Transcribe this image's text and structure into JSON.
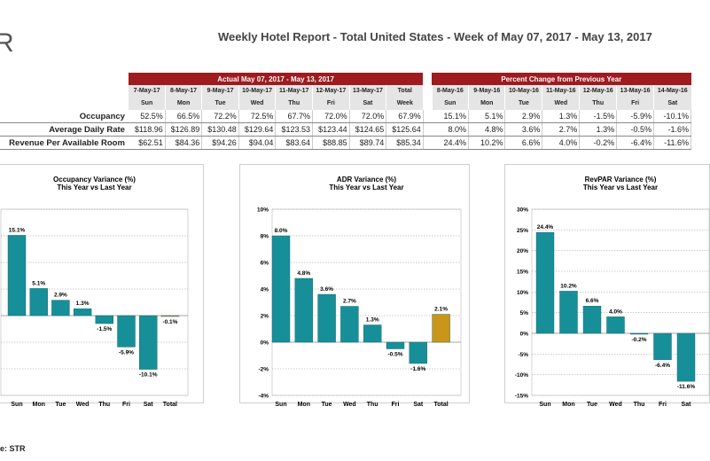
{
  "header": {
    "logo": "R",
    "title": "Weekly Hotel Report - Total United States - Week of May 07, 2017 - May 13, 2017"
  },
  "table": {
    "actual_label": "Actual May 07, 2017 - May 13, 2017",
    "change_label": "Percent Change from Previous Year",
    "actual_dates": [
      "7-May-17",
      "8-May-17",
      "9-May-17",
      "10-May-17",
      "11-May-17",
      "12-May-17",
      "13-May-17",
      "Total"
    ],
    "actual_days": [
      "Sun",
      "Mon",
      "Tue",
      "Wed",
      "Thu",
      "Fri",
      "Sat",
      "Week"
    ],
    "change_dates": [
      "8-May-16",
      "9-May-16",
      "10-May-16",
      "11-May-16",
      "12-May-16",
      "13-May-16",
      "14-May-16"
    ],
    "change_days": [
      "Sun",
      "Mon",
      "Tue",
      "Wed",
      "Thu",
      "Fri",
      "Sat"
    ],
    "rows": [
      {
        "label": "Occupancy",
        "actual": [
          "52.5%",
          "66.5%",
          "72.2%",
          "72.5%",
          "67.7%",
          "72.0%",
          "72.0%",
          "67.9%"
        ],
        "change": [
          "15.1%",
          "5.1%",
          "2.9%",
          "1.3%",
          "-1.5%",
          "-5.9%",
          "-10.1%"
        ]
      },
      {
        "label": "Average Daily Rate",
        "actual": [
          "$118.96",
          "$126.89",
          "$130.48",
          "$129.64",
          "$123.53",
          "$123.44",
          "$124.65",
          "$125.64"
        ],
        "change": [
          "8.0%",
          "4.8%",
          "3.6%",
          "2.7%",
          "1.3%",
          "-0.5%",
          "-1.6%"
        ]
      },
      {
        "label": "Revenue Per Available Room",
        "actual": [
          "$62.51",
          "$84.36",
          "$94.26",
          "$94.04",
          "$83.64",
          "$88.85",
          "$89.74",
          "$85.34"
        ],
        "change": [
          "24.4%",
          "10.2%",
          "6.6%",
          "4.0%",
          "-0.2%",
          "-6.4%",
          "-11.6%"
        ]
      }
    ]
  },
  "footer": {
    "source": "e: STR"
  },
  "colors": {
    "bar": "#178f99",
    "total_bar": "#c9961a",
    "header_red": "#9e1b20"
  },
  "chart_data": [
    {
      "type": "bar",
      "title": "Occupancy Variance (%)",
      "subtitle": "This Year vs Last Year",
      "categories": [
        "Sun",
        "Mon",
        "Tue",
        "Wed",
        "Thu",
        "Fri",
        "Sat",
        "Total"
      ],
      "values": [
        15.1,
        5.1,
        2.9,
        1.3,
        -1.5,
        -5.9,
        -10.1,
        -0.1
      ],
      "value_labels": [
        "15.1%",
        "5.1%",
        "2.9%",
        "1.3%",
        "-1.5%",
        "-5.9%",
        "-10.1%",
        "-0.1%"
      ],
      "ylim": [
        -15,
        20
      ],
      "ytick_labels": [],
      "ytick_values": [],
      "grid": true
    },
    {
      "type": "bar",
      "title": "ADR Variance (%)",
      "subtitle": "This Year vs Last Year",
      "categories": [
        "Sun",
        "Mon",
        "Tue",
        "Wed",
        "Thu",
        "Fri",
        "Sat",
        "Total"
      ],
      "values": [
        8.0,
        4.8,
        3.6,
        2.7,
        1.3,
        -0.5,
        -1.6,
        2.1
      ],
      "value_labels": [
        "8.0%",
        "4.8%",
        "3.6%",
        "2.7%",
        "1.3%",
        "-0.5%",
        "-1.6%",
        "2.1%"
      ],
      "ylim": [
        -4,
        10
      ],
      "ytick_values": [
        -4,
        -2,
        0,
        2,
        4,
        6,
        8,
        10
      ],
      "ytick_labels": [
        "-4%",
        "-2%",
        "0%",
        "2%",
        "4%",
        "6%",
        "8%",
        "10%"
      ],
      "grid": true
    },
    {
      "type": "bar",
      "title": "RevPAR Variance (%)",
      "subtitle": "This Year vs Last Year",
      "categories": [
        "Sun",
        "Mon",
        "Tue",
        "Wed",
        "Thu",
        "Fri",
        "Sat"
      ],
      "values": [
        24.4,
        10.2,
        6.6,
        4.0,
        -0.2,
        -6.4,
        -11.6
      ],
      "value_labels": [
        "24.4%",
        "10.2%",
        "6.6%",
        "4.0%",
        "-0.2%",
        "-6.4%",
        "-11.6%"
      ],
      "ylim": [
        -15,
        30
      ],
      "ytick_values": [
        -15,
        -10,
        -5,
        0,
        5,
        10,
        15,
        20,
        25,
        30
      ],
      "ytick_labels": [
        "-15%",
        "-10%",
        "-5%",
        "0%",
        "5%",
        "10%",
        "15%",
        "20%",
        "25%",
        "30%"
      ],
      "grid": true
    }
  ]
}
